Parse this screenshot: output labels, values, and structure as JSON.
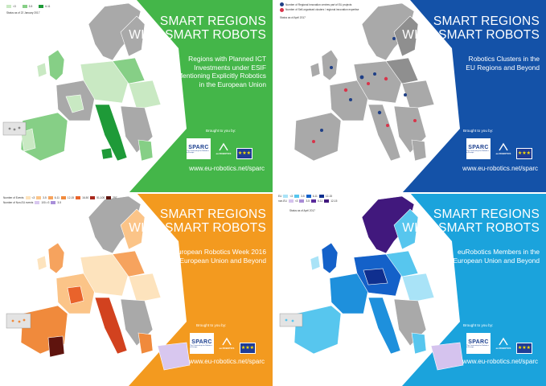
{
  "colors": {
    "green_panel": "#44b649",
    "blue_panel": "#1452a8",
    "orange_panel": "#f39a1f",
    "cyan_panel": "#1ba3dc",
    "land_grey": "#a9a9a9",
    "green_1": "#c9e9c3",
    "green_2": "#86cf86",
    "green_3": "#1e9a38",
    "blue_dot": "#1f3f86",
    "red_dot": "#d8344a",
    "orange_1": "#fde3bd",
    "orange_2": "#fbc488",
    "orange_3": "#f6a35e",
    "orange_4": "#f08a3c",
    "orange_5": "#e9632b",
    "orange_6": "#d2421f",
    "orange_7": "#a8281c",
    "orange_8": "#5f140e",
    "lilac_1": "#d8c7ef",
    "lilac_2": "#a98fd9",
    "cyan_1": "#a9e3f7",
    "cyan_2": "#57c6ee",
    "cyan_3": "#1e90dc",
    "cyan_4": "#1461c9",
    "cyan_5": "#0f2f8f",
    "purple_1": "#d5c3ee",
    "purple_2": "#a98bd6",
    "purple_3": "#7c4fbd",
    "purple_4": "#5a2b9b",
    "purple_5": "#41187d"
  },
  "panels": [
    {
      "title_line1": "SMART REGIONS",
      "title_line2": "WITH SMART ROBOTS",
      "subtitle_lines": [
        "Regions with Planned ICT",
        "Investments under ESIF",
        "Mentioning Explicitly Robotics",
        "in the European Union"
      ],
      "brought": "Brought to you by:",
      "url": "www.eu-robotics.net/sparc",
      "legend": [
        "<3",
        "3-5",
        "6-11"
      ],
      "status": "Status as of 22 January 2017"
    },
    {
      "title_line1": "SMART REGIONS",
      "title_line2": "WITH SMART ROBOTS",
      "subtitle_lines": [
        "Robotics Clusters in the",
        "EU Regions and Beyond"
      ],
      "brought": "Brought to you by:",
      "url": "www.eu-robotics.net/sparc",
      "legend": [
        "Number of Regional innovation centres part of EU projects",
        "Number of Self-organised clusters / regional innovation expertise"
      ],
      "status": "Status as of April 2017"
    },
    {
      "title_line1": "SMART REGIONS",
      "title_line2": "WITH SMART ROBOTS",
      "subtitle_lines": [
        "European Robotics Week 2016",
        "in the European Union and Beyond"
      ],
      "brought": "Brought to you by:",
      "url": "www.eu-robotics.net/sparc",
      "legend_label_eu": "Number of Events",
      "legend_label_noneu": "Number of Non-EU events",
      "legend": [
        "<3",
        "3-5",
        "6-11",
        "12-15",
        "16-50",
        "51-100",
        "257"
      ],
      "legend_noneu": [
        "100-<3",
        "3-5"
      ]
    },
    {
      "title_line1": "SMART REGIONS",
      "title_line2": "WITH SMART ROBOTS",
      "subtitle_lines": [
        "euRobotics Members in the",
        "European Union and Beyond"
      ],
      "brought": "Brought to you by:",
      "url": "www.eu-robotics.net/sparc",
      "legend_eu_label": "EU",
      "legend_noneu_label": "non-EU",
      "legend": [
        "<3",
        "3-5",
        "6-11",
        "12-15"
      ],
      "status": "Status as of April 2017"
    }
  ],
  "logos": {
    "sparc_word": "SPARC",
    "sparc_sub": "The Partnership for Robotics in Europe",
    "eurobotics_word": "eu ROBOTICS",
    "eu_stars": "★★★"
  }
}
